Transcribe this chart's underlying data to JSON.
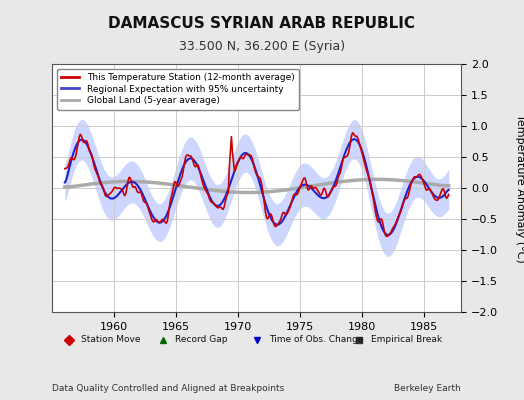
{
  "title": "DAMASCUS SYRIAN ARAB REPUBLIC",
  "subtitle": "33.500 N, 36.200 E (Syria)",
  "xlabel_note": "Data Quality Controlled and Aligned at Breakpoints",
  "credit": "Berkeley Earth",
  "ylabel": "Temperature Anomaly (°C)",
  "xlim": [
    1955,
    1988
  ],
  "ylim": [
    -2,
    2
  ],
  "yticks": [
    -2,
    -1.5,
    -1,
    -0.5,
    0,
    0.5,
    1,
    1.5,
    2
  ],
  "xticks": [
    1960,
    1965,
    1970,
    1975,
    1980,
    1985
  ],
  "legend_items": [
    {
      "label": "This Temperature Station (12-month average)",
      "color": "#cc0000",
      "lw": 2
    },
    {
      "label": "Regional Expectation with 95% uncertainty",
      "color": "#4444cc",
      "lw": 2
    },
    {
      "label": "Global Land (5-year average)",
      "color": "#aaaaaa",
      "lw": 2
    }
  ],
  "marker_legend": [
    {
      "label": "Station Move",
      "color": "#cc0000",
      "marker": "D"
    },
    {
      "label": "Record Gap",
      "color": "#006600",
      "marker": "^"
    },
    {
      "label": "Time of Obs. Change",
      "color": "#0000cc",
      "marker": "v"
    },
    {
      "label": "Empirical Break",
      "color": "#333333",
      "marker": "s"
    }
  ],
  "background_color": "#e8e8e8",
  "plot_bg_color": "#ffffff",
  "grid_color": "#cccccc",
  "title_fontsize": 11,
  "subtitle_fontsize": 9,
  "seed": 42
}
